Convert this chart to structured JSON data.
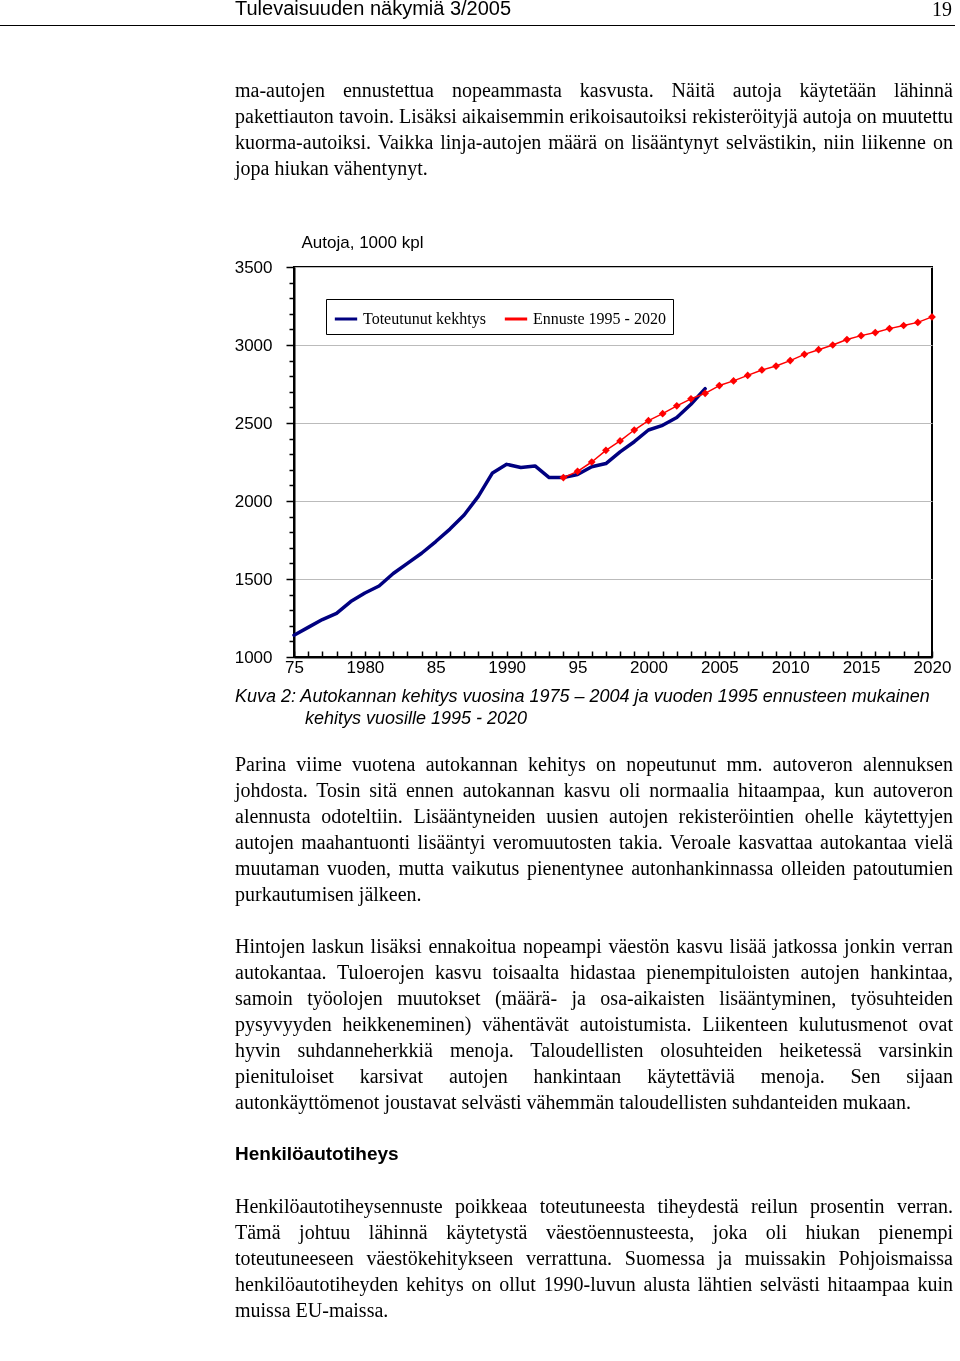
{
  "chart_data": {
    "type": "line",
    "title": "Kuva 2: Autokannan kehitys vuosina 1975 – 2004 ja vuoden 1995 ennusteen mukainen kehitys vuosille 1995 - 2020",
    "ylabel": "Autoja, 1000 kpl",
    "annotations": [
      "Tulevaisuuden näkymiä 3/2005",
      "19",
      "ma-autojen ennustettua nopeammasta kasvusta. Näitä autoja käytetään lähinnä pakettiauton tavoin. Lisäksi aikaisemmin erikoisautoiksi rekisteröityjä autoja on muutettu kuorma-autoiksi. Vaikka linja-autojen määrä on lisääntynyt selvästikin, niin liikenne on jopa hiukan vähentynyt.",
      "Parina viime vuotena autokannan kehitys on nopeutunut mm. autoveron alennuksen johdosta. Tosin sitä ennen autokannan kasvu oli normaalia hitaampaa, kun autoveron alennusta odoteltiin. Lisääntyneiden uusien autojen rekisteröintien ohelle käytettyjen autojen maahantuonti lisääntyi veromuutosten takia. Veroale kasvattaa autokantaa vielä muutaman vuoden, mutta vaikutus pienentynee autonhankinnassa olleiden patoutumien purkautumisen jälkeen.",
      "Hintojen laskun lisäksi ennakoitua nopeampi väestön kasvu lisää jatkossa jonkin verran autokantaa. Tuloerojen kasvu toisaalta hidastaa pienempituloisten autojen hankintaa, samoin työolojen muutokset (määrä- ja osa-aikaisten lisääntyminen, työsuhteiden pysyvyyden heikkeneminen) vähentävät autoistumista. Liikenteen kulutusmenot ovat hyvin suhdanneherkkiä menoja. Taloudellisten olosuhteiden heiketessä varsinkin pienituloiset karsivat autojen hankintaan käytettäviä menoja. Sen sijaan autonkäyttömenot joustavat selvästi vähemmän taloudellisten suhdanteiden mukaan.",
      "Henkilöautotiheys",
      "Henkilöautotiheysennuste poikkeaa toteutuneesta tiheydestä reilun prosentin verran. Tämä johtuu lähinnä käytetystä väestöennusteesta, joka oli hiukan pienempi toteutuneeseen väestökehitykseen verrattuna. Suomessa ja muissakin Pohjoismaissa henkilöautotiheyden kehitys on ollut 1990-luvun alusta lähtien selvästi hitaampaa kuin muissa EU-maissa."
    ],
    "series": [
      {
        "name": "Toteutunut kekhtys",
        "color": "#000080",
        "marker": "none",
        "x": [
          1975,
          1976,
          1977,
          1978,
          1979,
          1980,
          1981,
          1982,
          1983,
          1984,
          1985,
          1986,
          1987,
          1988,
          1989,
          1990,
          1991,
          1992,
          1993,
          1994,
          1995,
          1996,
          1997,
          1998,
          1999,
          2000,
          2001,
          2002,
          2003,
          2004
        ],
        "values": [
          1140,
          1190,
          1240,
          1280,
          1355,
          1410,
          1455,
          1535,
          1600,
          1665,
          1740,
          1820,
          1910,
          2030,
          2180,
          2235,
          2215,
          2225,
          2150,
          2150,
          2170,
          2220,
          2240,
          2315,
          2380,
          2455,
          2485,
          2535,
          2620,
          2720
        ]
      },
      {
        "name": "Ennuste 1995 - 2020",
        "color": "#ff0000",
        "marker": "diamond",
        "x": [
          1994,
          1995,
          1996,
          1997,
          1998,
          1999,
          2000,
          2001,
          2002,
          2003,
          2004,
          2005,
          2006,
          2007,
          2008,
          2009,
          2010,
          2011,
          2012,
          2013,
          2014,
          2015,
          2016,
          2017,
          2018,
          2019,
          2020
        ],
        "values": [
          2150,
          2190,
          2250,
          2325,
          2385,
          2455,
          2515,
          2560,
          2610,
          2655,
          2690,
          2740,
          2770,
          2805,
          2840,
          2865,
          2900,
          2940,
          2970,
          3000,
          3035,
          3060,
          3080,
          3105,
          3125,
          3145,
          3180
        ]
      }
    ],
    "xlim": [
      1975,
      2020
    ],
    "xticks": [
      {
        "value": 1975,
        "label": "75"
      },
      {
        "value": 1976,
        "label": null
      },
      {
        "value": 1977,
        "label": null
      },
      {
        "value": 1978,
        "label": null
      },
      {
        "value": 1979,
        "label": null
      },
      1980,
      {
        "value": 1981,
        "label": null
      },
      {
        "value": 1982,
        "label": null
      },
      {
        "value": 1983,
        "label": null
      },
      {
        "value": 1984,
        "label": null
      },
      {
        "value": 1985,
        "label": "85"
      },
      {
        "value": 1986,
        "label": null
      },
      {
        "value": 1987,
        "label": null
      },
      {
        "value": 1988,
        "label": null
      },
      {
        "value": 1989,
        "label": null
      },
      1990,
      {
        "value": 1991,
        "label": null
      },
      {
        "value": 1992,
        "label": null
      },
      {
        "value": 1993,
        "label": null
      },
      {
        "value": 1994,
        "label": null
      },
      {
        "value": 1995,
        "label": "95"
      },
      {
        "value": 1996,
        "label": null
      },
      {
        "value": 1997,
        "label": null
      },
      {
        "value": 1998,
        "label": null
      },
      {
        "value": 1999,
        "label": null
      },
      2000,
      {
        "value": 2001,
        "label": null
      },
      {
        "value": 2002,
        "label": null
      },
      {
        "value": 2003,
        "label": null
      },
      {
        "value": 2004,
        "label": null
      },
      2005,
      {
        "value": 2006,
        "label": null
      },
      {
        "value": 2007,
        "label": null
      },
      {
        "value": 2008,
        "label": null
      },
      {
        "value": 2009,
        "label": null
      },
      2010,
      {
        "value": 2011,
        "label": null
      },
      {
        "value": 2012,
        "label": null
      },
      {
        "value": 2013,
        "label": null
      },
      {
        "value": 2014,
        "label": null
      },
      2015,
      {
        "value": 2016,
        "label": null
      },
      {
        "value": 2017,
        "label": null
      },
      {
        "value": 2018,
        "label": null
      },
      {
        "value": 2019,
        "label": null
      },
      2020
    ],
    "ylim": [
      1000,
      3500
    ],
    "yticks": [
      1000,
      {
        "value": 1100,
        "label": null
      },
      {
        "value": 1200,
        "label": null
      },
      {
        "value": 1300,
        "label": null
      },
      {
        "value": 1400,
        "label": null
      },
      1500,
      {
        "value": 1600,
        "label": null
      },
      {
        "value": 1700,
        "label": null
      },
      {
        "value": 1800,
        "label": null
      },
      {
        "value": 1900,
        "label": null
      },
      2000,
      {
        "value": 2100,
        "label": null
      },
      {
        "value": 2200,
        "label": null
      },
      {
        "value": 2300,
        "label": null
      },
      {
        "value": 2400,
        "label": null
      },
      2500,
      {
        "value": 2600,
        "label": null
      },
      {
        "value": 2700,
        "label": null
      },
      {
        "value": 2800,
        "label": null
      },
      {
        "value": 2900,
        "label": null
      },
      3000,
      {
        "value": 3100,
        "label": null
      },
      {
        "value": 3200,
        "label": null
      },
      {
        "value": 3300,
        "label": null
      },
      {
        "value": 3400,
        "label": null
      },
      3500
    ],
    "grid": "y",
    "legend": "top left",
    "line_style": "solid"
  }
}
